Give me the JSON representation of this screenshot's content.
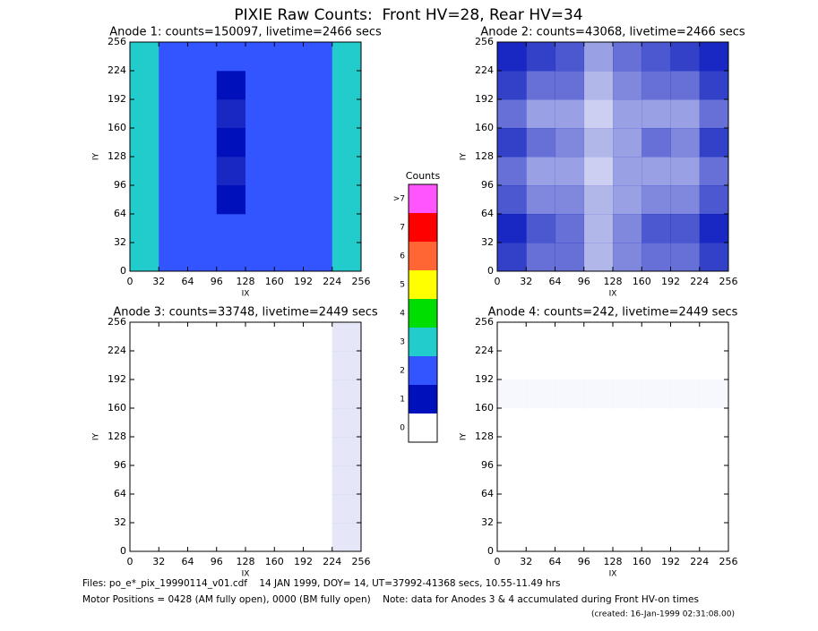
{
  "title": "PIXIE Raw Counts:  Front HV=28, Rear HV=34",
  "chart_data": [
    {
      "type": "heatmap",
      "title": "Anode 1: counts=150097, livetime=2466 secs",
      "xlabel": "IX",
      "ylabel": "IY",
      "xlim": [
        0,
        256
      ],
      "ylim": [
        0,
        256
      ],
      "xticks": [
        0,
        32,
        64,
        96,
        128,
        160,
        192,
        224,
        256
      ],
      "yticks": [
        0,
        32,
        64,
        96,
        128,
        160,
        192,
        224,
        256
      ],
      "z": [
        [
          2.5,
          1.5,
          1.4,
          1.3,
          1.4,
          1.4,
          1.5,
          2.5
        ],
        [
          3,
          1.8,
          1.6,
          1.2,
          1.5,
          1.6,
          1.8,
          3
        ],
        [
          2.5,
          1.5,
          1.4,
          1.0,
          1.3,
          1.5,
          1.5,
          2.5
        ],
        [
          2.2,
          1.4,
          1.3,
          0.9,
          1.2,
          1.4,
          1.4,
          2.2
        ],
        [
          2.5,
          1.6,
          1.6,
          1.0,
          1.3,
          1.8,
          1.6,
          2.5
        ],
        [
          2.2,
          1.4,
          1.3,
          0.9,
          1.2,
          1.4,
          1.4,
          2.2
        ],
        [
          2.5,
          1.5,
          1.4,
          1.0,
          1.3,
          1.5,
          1.6,
          2.5
        ],
        [
          3,
          1.8,
          1.6,
          1.2,
          1.4,
          1.7,
          1.8,
          3
        ]
      ]
    },
    {
      "type": "heatmap",
      "title": "Anode 2: counts=43068, livetime=2466 secs",
      "xlabel": "IX",
      "ylabel": "IY",
      "xlim": [
        0,
        256
      ],
      "ylim": [
        0,
        256
      ],
      "xticks": [
        0,
        32,
        64,
        96,
        128,
        160,
        192,
        224,
        256
      ],
      "yticks": [
        0,
        32,
        64,
        96,
        128,
        160,
        192,
        224,
        256
      ],
      "z": [
        [
          0.8,
          0.6,
          0.6,
          0.3,
          0.5,
          0.6,
          0.6,
          0.8
        ],
        [
          0.9,
          0.7,
          0.6,
          0.3,
          0.5,
          0.7,
          0.7,
          0.9
        ],
        [
          0.7,
          0.5,
          0.5,
          0.3,
          0.4,
          0.5,
          0.5,
          0.7
        ],
        [
          0.6,
          0.4,
          0.4,
          0.2,
          0.4,
          0.4,
          0.4,
          0.6
        ],
        [
          0.8,
          0.6,
          0.5,
          0.3,
          0.4,
          0.6,
          0.5,
          0.8
        ],
        [
          0.6,
          0.4,
          0.4,
          0.2,
          0.4,
          0.4,
          0.4,
          0.6
        ],
        [
          0.8,
          0.6,
          0.6,
          0.3,
          0.5,
          0.6,
          0.6,
          0.8
        ],
        [
          0.9,
          0.8,
          0.7,
          0.4,
          0.6,
          0.7,
          0.8,
          0.9
        ]
      ]
    },
    {
      "type": "heatmap",
      "title": "Anode 3: counts=33748, livetime=2449 secs",
      "xlabel": "IX",
      "ylabel": "IY",
      "xlim": [
        0,
        256
      ],
      "ylim": [
        0,
        256
      ],
      "xticks": [
        0,
        32,
        64,
        96,
        128,
        160,
        192,
        224,
        256
      ],
      "yticks": [
        0,
        32,
        64,
        96,
        128,
        160,
        192,
        224,
        256
      ],
      "z": [
        [
          0,
          0,
          0,
          0,
          0,
          0,
          0,
          0.1
        ],
        [
          0,
          0,
          0,
          0,
          0,
          0,
          0,
          0.1
        ],
        [
          0,
          0,
          0,
          0,
          0,
          0,
          0,
          0.1
        ],
        [
          0,
          0,
          0,
          0,
          0,
          0,
          0,
          0.1
        ],
        [
          0,
          0,
          0,
          0,
          0,
          0,
          0,
          0.1
        ],
        [
          0,
          0,
          0,
          0,
          0,
          0,
          0,
          0.1
        ],
        [
          0,
          0,
          0,
          0,
          0,
          0,
          0,
          0.1
        ],
        [
          0,
          0,
          0,
          0,
          0,
          0,
          0,
          0.1
        ]
      ]
    },
    {
      "type": "heatmap",
      "title": "Anode 4: counts=242, livetime=2449 secs",
      "xlabel": "IX",
      "ylabel": "IY",
      "xlim": [
        0,
        256
      ],
      "ylim": [
        0,
        256
      ],
      "xticks": [
        0,
        32,
        64,
        96,
        128,
        160,
        192,
        224,
        256
      ],
      "yticks": [
        0,
        32,
        64,
        96,
        128,
        160,
        192,
        224,
        256
      ],
      "z": [
        [
          0,
          0,
          0,
          0,
          0,
          0,
          0,
          0
        ],
        [
          0,
          0,
          0,
          0,
          0,
          0,
          0,
          0
        ],
        [
          0,
          0,
          0,
          0,
          0,
          0,
          0,
          0
        ],
        [
          0,
          0,
          0,
          0,
          0,
          0,
          0,
          0
        ],
        [
          0,
          0,
          0,
          0,
          0,
          0,
          0,
          0
        ],
        [
          0.03,
          0.03,
          0.03,
          0.03,
          0.03,
          0.03,
          0.03,
          0.03
        ],
        [
          0,
          0,
          0,
          0,
          0,
          0,
          0,
          0
        ],
        [
          0,
          0,
          0,
          0,
          0,
          0,
          0,
          0
        ]
      ]
    }
  ],
  "colorbar": {
    "title": "Counts",
    "labels": [
      "0",
      "1",
      "2",
      "3",
      "4",
      "5",
      "6",
      "7",
      ">7"
    ],
    "colors": [
      "#ffffff",
      "#0011bb",
      "#3355ff",
      "#22cccc",
      "#00dd00",
      "#ffff00",
      "#ff6633",
      "#ff0000",
      "#ff55ff"
    ]
  },
  "footer": [
    "Files: po_e*_pix_19990114_v01.cdf    14 JAN 1999, DOY= 14, UT=37992-41368 secs, 10.55-11.49 hrs",
    "Motor Positions = 0428 (AM fully open), 0000 (BM fully open)    Note: data for Anodes 3 & 4 accumulated during Front HV-on times",
    "(created: 16-Jan-1999 02:31:08.00)"
  ]
}
